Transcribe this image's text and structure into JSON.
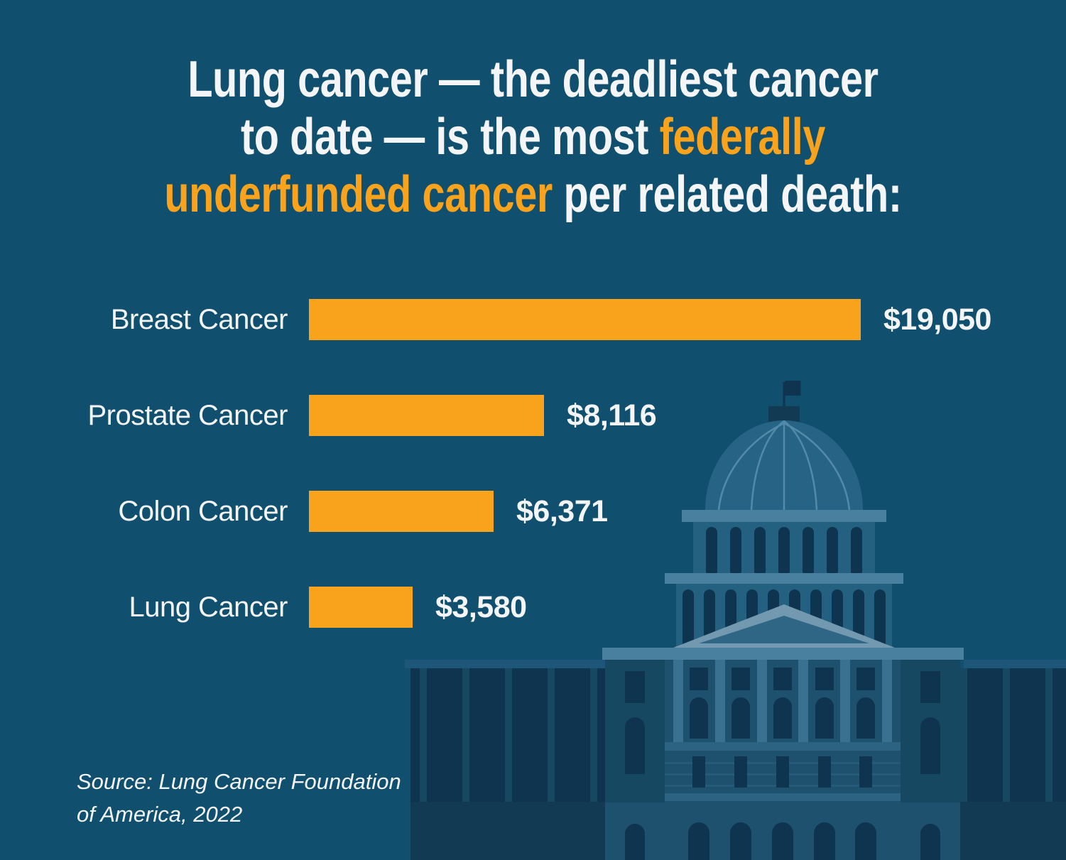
{
  "title": {
    "line1": "Lung cancer — the deadliest cancer",
    "line2_white": "to date — is the most ",
    "line2_orange": "federally",
    "line3_orange": "underfunded cancer",
    "line3_white": " per related death:"
  },
  "chart_data": {
    "type": "bar",
    "orientation": "horizontal",
    "title": "Lung cancer — the deadliest cancer to date — is the most federally underfunded cancer per related death:",
    "categories": [
      "Breast Cancer",
      "Prostate Cancer",
      "Colon Cancer",
      "Lung Cancer"
    ],
    "values": [
      19050,
      8116,
      6371,
      3580
    ],
    "value_labels": [
      "$19,050",
      "$8,116",
      "$6,371",
      "$3,580"
    ],
    "xlim": [
      0,
      19050
    ],
    "grid": false,
    "legend": false,
    "bar_color": "#F9A21C",
    "value_label_position": "right-of-bar"
  },
  "source": {
    "line1": "Source: Lung Cancer Foundation",
    "line2": "of America, 2022"
  },
  "illustration": {
    "name": "US Capitol building silhouette"
  },
  "colors": {
    "bg": "#104F6E",
    "accent-orange": "#F9A21C",
    "text-white": "#F3F5F6",
    "cap-base": "#174862",
    "cap-dark": "#0E3450",
    "cap-mid": "#24607F",
    "cap-dome": "#266384",
    "cap-face": "#1D516D",
    "cap-light": "#49809F",
    "cap-light2": "#2C6382",
    "cap-pilaster": "#3A7191",
    "cap-ped-light": "#7299B0",
    "cap-ped-dark": "#2F6585",
    "cap-rib": "#538AA9",
    "cap-shadow": "#123A52",
    "cap-roof": "#1E567A"
  }
}
